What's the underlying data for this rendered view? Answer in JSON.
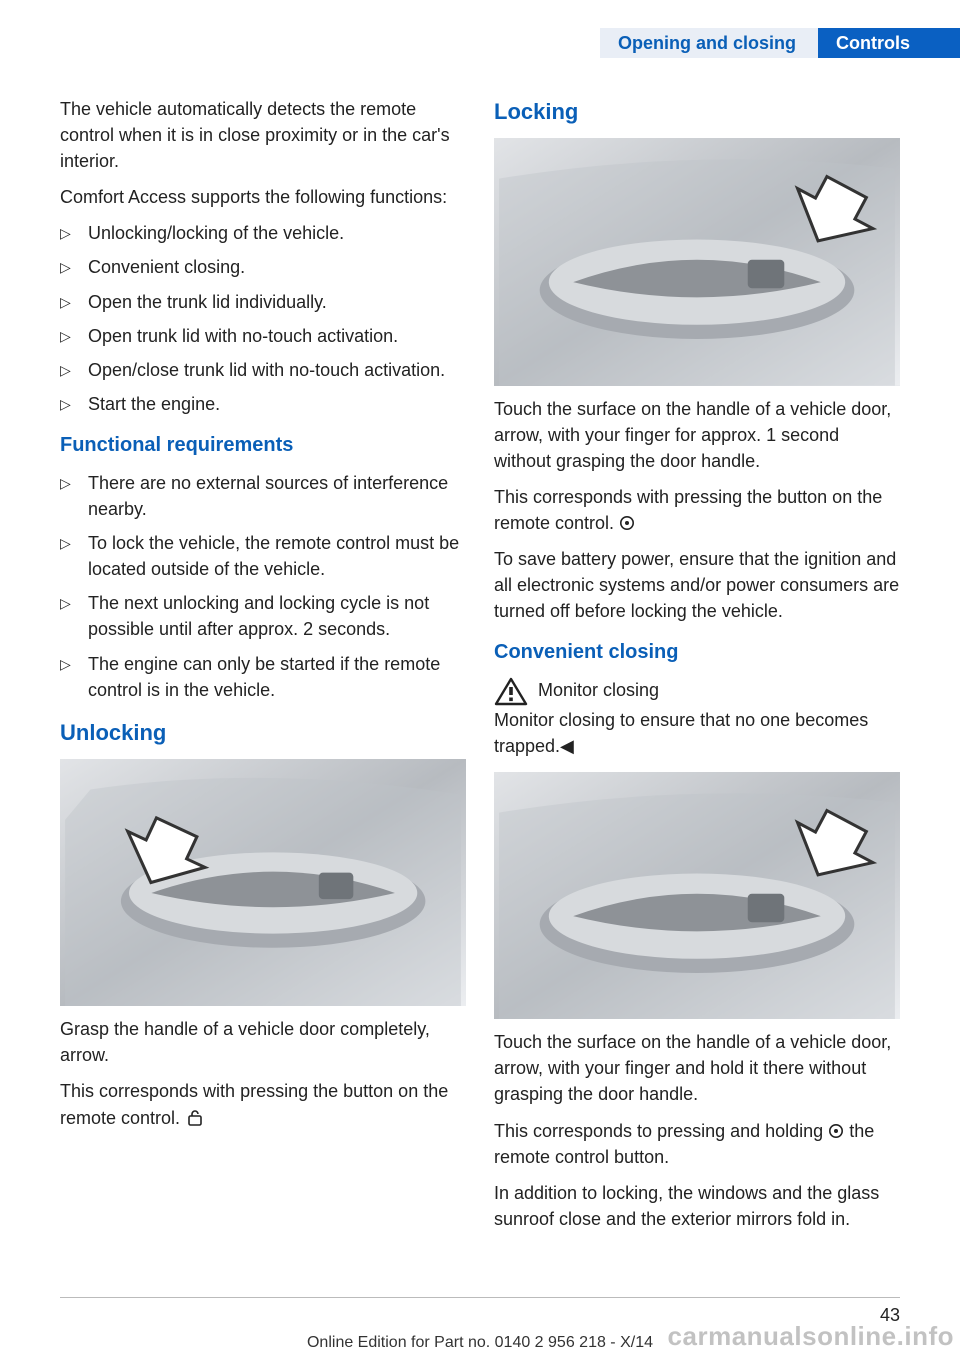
{
  "header": {
    "crumb1": "Opening and closing",
    "crumb2": "Controls"
  },
  "left": {
    "intro1": "The vehicle automatically detects the remote control when it is in close proximity or in the car's interior.",
    "intro2": "Comfort Access supports the following func­tions:",
    "funcs": [
      "Unlocking/locking of the vehicle.",
      "Convenient closing.",
      "Open the trunk lid individually.",
      "Open trunk lid with no-touch activation.",
      "Open/close trunk lid with no-touch activa­tion.",
      "Start the engine."
    ],
    "h_funcreq": "Functional requirements",
    "reqs": [
      "There are no external sources of interfer­ence nearby.",
      "To lock the vehicle, the remote control must be located outside of the vehicle.",
      "The next unlocking and locking cycle is not possible until after approx. 2 seconds.",
      "The engine can only be started if the re­mote control is in the vehicle."
    ],
    "h_unlock": "Unlocking",
    "unlock_p1": "Grasp the handle of a vehicle door completely, arrow.",
    "unlock_p2_a": "This corresponds with pressing the button on the remote control. "
  },
  "right": {
    "h_lock": "Locking",
    "lock_p1": "Touch the surface on the handle of a vehicle door, arrow, with your finger for approx. 1 sec­ond without grasping the door handle.",
    "lock_p2_a": "This corresponds with pressing the button on the remote control. ",
    "lock_p3": "To save battery power, ensure that the ignition and all electronic systems and/or power con­sumers are turned off before locking the vehi­cle.",
    "h_conv": "Convenient closing",
    "warn_title": "Monitor closing",
    "warn_body": "Monitor closing to ensure that no one becomes trapped.◀",
    "conv_p1": "Touch the surface on the handle of a vehicle door, arrow, with your finger and hold it there without grasping the door handle.",
    "conv_p2_a": "This corresponds to pressing and holding ",
    "conv_p2_b": " the remote control button.",
    "conv_p3": "In addition to locking, the windows and the glass sunroof close and the exterior mirrors fold in."
  },
  "footer": {
    "page": "43",
    "line": "Online Edition for Part no. 0140 2 956 218 - X/14"
  },
  "watermark": "carmanualsonline.info",
  "colors": {
    "accent": "#0a5fb7",
    "header_bg": "#0a60c2",
    "crumb_bg": "#e9eef6"
  },
  "figures": {
    "unlock": {
      "arrow_pos": "left",
      "arrow_angle_deg": 225
    },
    "lock": {
      "arrow_pos": "right",
      "arrow_angle_deg": 225
    },
    "conv": {
      "arrow_pos": "right",
      "arrow_angle_deg": 225
    }
  }
}
